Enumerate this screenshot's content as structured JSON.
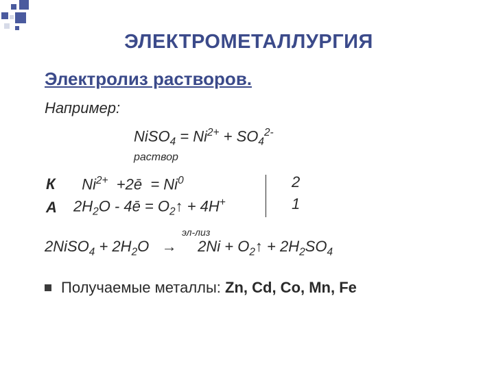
{
  "deco": {
    "color": "#4a5a9e",
    "light": "#d7dbe8"
  },
  "title": "ЭЛЕКТРОМЕТАЛЛУРГИЯ",
  "subtitle": "Электролиз растворов.",
  "exampleLabel": "Например:",
  "dissociation": {
    "formulaHtml": "NiSO<sub>4</sub> = Ni<sup>2+</sup> + SO<sub>4</sub><sup>2-</sup>",
    "stateLabel": "раствор"
  },
  "cathode": {
    "label": "К",
    "eqHtml": "&nbsp;&nbsp;Ni<sup>2+</sup>&nbsp;&nbsp;+2ē&nbsp;&nbsp;= Ni<sup>0</sup>",
    "multiplier": "2"
  },
  "anode": {
    "label": "А",
    "eqHtml": "2H<sub>2</sub>O - 4ē = O<sub>2</sub>↑ + 4H<sup>+</sup>",
    "multiplier": "1"
  },
  "overall": {
    "arrowLabel": "эл-лиз",
    "eqHtml": "2NiSO<sub>4</sub> + 2H<sub>2</sub>O&nbsp;&nbsp;&nbsp;→&nbsp;&nbsp;&nbsp;&nbsp;&nbsp;2Ni + O<sub>2</sub>↑ + 2H<sub>2</sub>SO<sub>4</sub>"
  },
  "bullet": {
    "textHtml": "Получаемые металлы: <b>Zn, Cd, Co, Mn, Fe</b>"
  },
  "colors": {
    "titleColor": "#3b4a8a",
    "bodyColor": "#2a2a2a",
    "background": "#ffffff"
  },
  "fonts": {
    "title_pt": 29,
    "subtitle_pt": 26,
    "body_pt": 22,
    "small_pt": 16
  }
}
